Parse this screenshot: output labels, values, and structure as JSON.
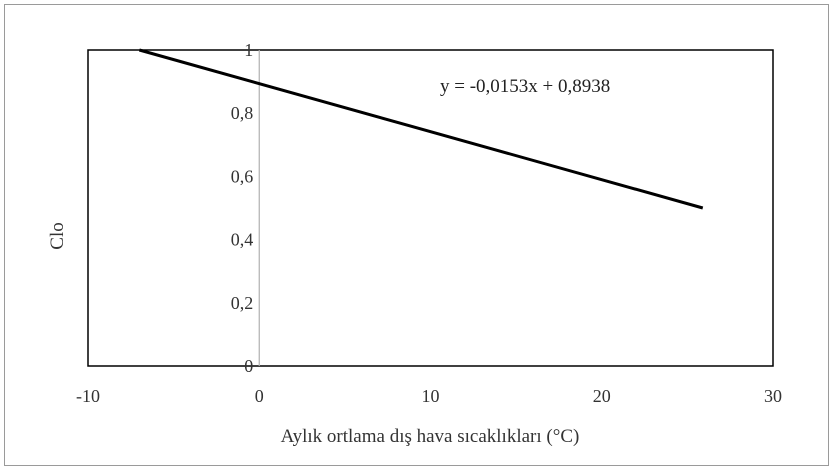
{
  "chart_data": {
    "type": "line",
    "xlabel": "Aylık ortlama dış hava sıcaklıkları (°C)",
    "ylabel": "Clo",
    "xlim": [
      -10,
      30
    ],
    "ylim": [
      0,
      1
    ],
    "x_ticks": [
      "-10",
      "0",
      "10",
      "20",
      "30"
    ],
    "y_ticks": [
      "0",
      "0,2",
      "0,4",
      "0,6",
      "0,8",
      "1"
    ],
    "grid": false,
    "series": [
      {
        "x": [
          -7.0,
          25.9
        ],
        "y": [
          1.0,
          0.5
        ]
      }
    ],
    "annotations": [
      {
        "text": "y = -0,0153x + 0,8938"
      }
    ],
    "colors": {
      "line": "#000000",
      "axis": "#000000",
      "y_axis_at_zero": "#b0b0b0",
      "frame": "#9a9a9a"
    }
  }
}
